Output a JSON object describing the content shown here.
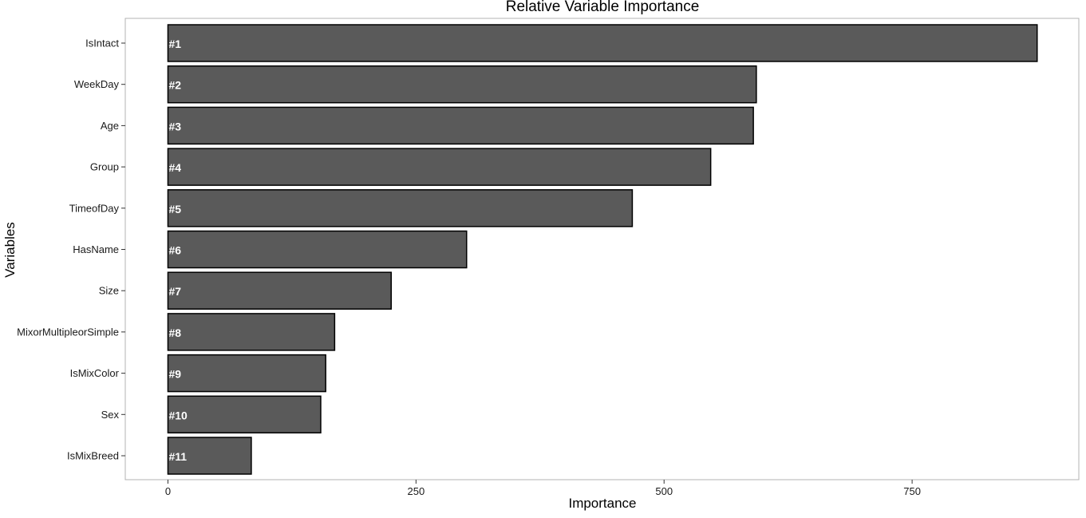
{
  "chart_data": {
    "type": "bar",
    "orientation": "horizontal",
    "title": "Relative Variable Importance",
    "xlabel": "Importance",
    "ylabel": "Variables",
    "categories": [
      "IsIntact",
      "WeekDay",
      "Age",
      "Group",
      "TimeofDay",
      "HasName",
      "Size",
      "MixorMultipleorSimple",
      "IsMixColor",
      "Sex",
      "IsMixBreed"
    ],
    "values": [
      876,
      593,
      590,
      547,
      468,
      301,
      225,
      168,
      159,
      154,
      84
    ],
    "bar_labels": [
      "#1",
      "#2",
      "#3",
      "#4",
      "#5",
      "#6",
      "#7",
      "#8",
      "#9",
      "#10",
      "#11"
    ],
    "xlim": [
      -43,
      918
    ],
    "x_ticks": [
      0,
      250,
      500,
      750
    ],
    "x_tick_labels": [
      "0",
      "250",
      "500",
      "750"
    ],
    "grid": false,
    "legend": "none",
    "colors": {
      "bar_fill": "#5a5a5a",
      "bar_stroke": "#000000",
      "label_color": "#ffffff",
      "panel_border": "#b3b3b3"
    }
  }
}
